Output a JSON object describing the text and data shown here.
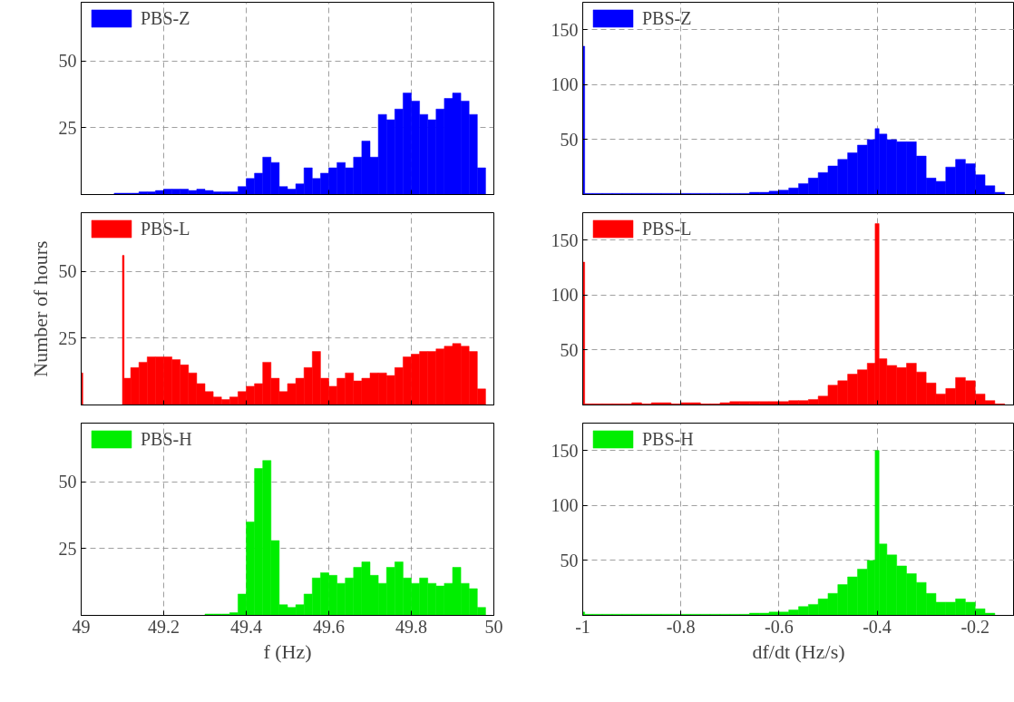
{
  "chart_data": [
    {
      "type": "histogram",
      "bins": [
        49.0,
        49.02,
        49.04,
        49.06,
        49.08,
        49.1,
        49.12,
        49.14,
        49.16,
        49.18,
        49.2,
        49.22,
        49.24,
        49.26,
        49.28,
        49.3,
        49.32,
        49.34,
        49.36,
        49.38,
        49.4,
        49.42,
        49.44,
        49.46,
        49.48,
        49.5,
        49.52,
        49.54,
        49.56,
        49.58,
        49.6,
        49.62,
        49.64,
        49.66,
        49.68,
        49.7,
        49.72,
        49.74,
        49.76,
        49.78,
        49.8,
        49.82,
        49.84,
        49.86,
        49.88,
        49.9,
        49.92,
        49.94,
        49.96,
        49.98,
        50.0
      ],
      "series": [
        {
          "name": "PBS-Z",
          "color": "#0000ff",
          "values": [
            0,
            0,
            0,
            0,
            0.5,
            0.5,
            0.5,
            1,
            1,
            1.5,
            2,
            2,
            2,
            1.5,
            2,
            1.5,
            1,
            1,
            1,
            3,
            6,
            8,
            14,
            12,
            3,
            2,
            4,
            10,
            6,
            8,
            10,
            12,
            10,
            14,
            20,
            14,
            30,
            28,
            32,
            38,
            35,
            30,
            28,
            32,
            36,
            38,
            35,
            30,
            10,
            0
          ]
        }
      ],
      "xlim": [
        49,
        50
      ],
      "xticks": [
        49,
        49.2,
        49.4,
        49.6,
        49.8,
        50
      ],
      "ylim": [
        0,
        72
      ],
      "yticks": [
        25,
        50
      ],
      "tick_labels": "y",
      "grid": true,
      "legend": "top left"
    },
    {
      "type": "histogram",
      "bins": [
        -1,
        -0.996,
        -0.98,
        -0.96,
        -0.94,
        -0.92,
        -0.9,
        -0.88,
        -0.86,
        -0.84,
        -0.82,
        -0.8,
        -0.78,
        -0.76,
        -0.74,
        -0.72,
        -0.7,
        -0.68,
        -0.66,
        -0.64,
        -0.62,
        -0.6,
        -0.58,
        -0.56,
        -0.54,
        -0.52,
        -0.5,
        -0.48,
        -0.46,
        -0.44,
        -0.42,
        -0.404,
        -0.396,
        -0.38,
        -0.36,
        -0.34,
        -0.32,
        -0.3,
        -0.28,
        -0.26,
        -0.24,
        -0.22,
        -0.2,
        -0.18,
        -0.16,
        -0.14
      ],
      "series": [
        {
          "name": "PBS-Z",
          "color": "#0000ff",
          "values": [
            135,
            1,
            1,
            1,
            1,
            1,
            1,
            1,
            1,
            1,
            1,
            1,
            1,
            1,
            1,
            1,
            1,
            1,
            2,
            2,
            3,
            4,
            6,
            10,
            15,
            20,
            26,
            32,
            38,
            45,
            50,
            60,
            55,
            50,
            48,
            48,
            35,
            15,
            12,
            25,
            32,
            28,
            18,
            8,
            2
          ]
        }
      ],
      "xlim": [
        -1,
        -0.12
      ],
      "xticks": [
        -1,
        -0.8,
        -0.6,
        -0.4,
        -0.2
      ],
      "ylim": [
        0,
        175
      ],
      "yticks": [
        50,
        100,
        150
      ],
      "tick_labels": "y",
      "grid": true,
      "legend": "top left"
    },
    {
      "type": "histogram",
      "bins": [
        49.0,
        49.004,
        49.02,
        49.04,
        49.06,
        49.08,
        49.1,
        49.104,
        49.12,
        49.14,
        49.16,
        49.18,
        49.2,
        49.22,
        49.24,
        49.26,
        49.28,
        49.3,
        49.32,
        49.34,
        49.36,
        49.38,
        49.4,
        49.42,
        49.44,
        49.46,
        49.48,
        49.5,
        49.52,
        49.54,
        49.56,
        49.58,
        49.6,
        49.62,
        49.64,
        49.66,
        49.68,
        49.7,
        49.72,
        49.74,
        49.76,
        49.78,
        49.8,
        49.82,
        49.84,
        49.86,
        49.88,
        49.9,
        49.92,
        49.94,
        49.96,
        49.98,
        50.0
      ],
      "series": [
        {
          "name": "PBS-L",
          "color": "#ff0000",
          "values": [
            12,
            0,
            0,
            0,
            0,
            0,
            56,
            10,
            14,
            16,
            18,
            18,
            18,
            17,
            15,
            12,
            8,
            5,
            3,
            2,
            3,
            5,
            7,
            8,
            16,
            10,
            5,
            8,
            10,
            14,
            20,
            10,
            7,
            10,
            12,
            9,
            10,
            12,
            12,
            11,
            14,
            18,
            19,
            20,
            20,
            21,
            22,
            23,
            22,
            20,
            6,
            0
          ]
        }
      ],
      "ylabel": "Number of hours",
      "xlim": [
        49,
        50
      ],
      "xticks": [
        49,
        49.2,
        49.4,
        49.6,
        49.8,
        50
      ],
      "ylim": [
        0,
        72
      ],
      "yticks": [
        25,
        50
      ],
      "tick_labels": "y",
      "grid": true,
      "legend": "top left"
    },
    {
      "type": "histogram",
      "bins": [
        -1,
        -0.996,
        -0.98,
        -0.96,
        -0.94,
        -0.92,
        -0.9,
        -0.88,
        -0.86,
        -0.84,
        -0.82,
        -0.8,
        -0.78,
        -0.76,
        -0.74,
        -0.72,
        -0.7,
        -0.68,
        -0.66,
        -0.64,
        -0.62,
        -0.6,
        -0.58,
        -0.56,
        -0.54,
        -0.52,
        -0.5,
        -0.48,
        -0.46,
        -0.44,
        -0.42,
        -0.404,
        -0.396,
        -0.38,
        -0.36,
        -0.34,
        -0.32,
        -0.3,
        -0.28,
        -0.26,
        -0.24,
        -0.22,
        -0.2,
        -0.18,
        -0.16,
        -0.14
      ],
      "series": [
        {
          "name": "PBS-L",
          "color": "#ff0000",
          "values": [
            130,
            1,
            1,
            1,
            1,
            1,
            2,
            1,
            2,
            2,
            1,
            2,
            2,
            1,
            1,
            2,
            3,
            3,
            3,
            3,
            3,
            3,
            4,
            4,
            5,
            8,
            18,
            22,
            28,
            32,
            38,
            165,
            42,
            36,
            34,
            38,
            30,
            20,
            10,
            15,
            25,
            22,
            10,
            4,
            1
          ]
        }
      ],
      "xlim": [
        -1,
        -0.12
      ],
      "xticks": [
        -1,
        -0.8,
        -0.6,
        -0.4,
        -0.2
      ],
      "ylim": [
        0,
        175
      ],
      "yticks": [
        50,
        100,
        150
      ],
      "tick_labels": "y",
      "grid": true,
      "legend": "top left"
    },
    {
      "type": "histogram",
      "bins": [
        49.0,
        49.02,
        49.04,
        49.06,
        49.08,
        49.1,
        49.12,
        49.14,
        49.16,
        49.18,
        49.2,
        49.22,
        49.24,
        49.26,
        49.28,
        49.3,
        49.32,
        49.34,
        49.36,
        49.38,
        49.4,
        49.42,
        49.44,
        49.46,
        49.48,
        49.5,
        49.52,
        49.54,
        49.56,
        49.58,
        49.6,
        49.62,
        49.64,
        49.66,
        49.68,
        49.7,
        49.72,
        49.74,
        49.76,
        49.78,
        49.8,
        49.82,
        49.84,
        49.86,
        49.88,
        49.9,
        49.92,
        49.94,
        49.96,
        49.98,
        50.0
      ],
      "series": [
        {
          "name": "PBS-H",
          "color": "#00ee00",
          "values": [
            0,
            0,
            0,
            0,
            0,
            0,
            0,
            0,
            0,
            0,
            0,
            0,
            0,
            0,
            0,
            0.5,
            0.5,
            0.5,
            1,
            8,
            35,
            55,
            58,
            28,
            4,
            3,
            4,
            8,
            14,
            16,
            15,
            12,
            14,
            18,
            20,
            15,
            12,
            18,
            20,
            14,
            12,
            14,
            12,
            11,
            12,
            18,
            12,
            10,
            3,
            0
          ]
        }
      ],
      "xlabel": "f (Hz)",
      "xlim": [
        49,
        50
      ],
      "xticks": [
        49,
        49.2,
        49.4,
        49.6,
        49.8,
        50
      ],
      "ylim": [
        0,
        72
      ],
      "yticks": [
        25,
        50
      ],
      "grid": true,
      "legend": "top left"
    },
    {
      "type": "histogram",
      "bins": [
        -1,
        -0.996,
        -0.98,
        -0.96,
        -0.94,
        -0.92,
        -0.9,
        -0.88,
        -0.86,
        -0.84,
        -0.82,
        -0.8,
        -0.78,
        -0.76,
        -0.74,
        -0.72,
        -0.7,
        -0.68,
        -0.66,
        -0.64,
        -0.62,
        -0.6,
        -0.58,
        -0.56,
        -0.54,
        -0.52,
        -0.5,
        -0.48,
        -0.46,
        -0.44,
        -0.42,
        -0.404,
        -0.396,
        -0.38,
        -0.36,
        -0.34,
        -0.32,
        -0.3,
        -0.28,
        -0.26,
        -0.24,
        -0.22,
        -0.2,
        -0.18,
        -0.16,
        -0.14
      ],
      "series": [
        {
          "name": "PBS-H",
          "color": "#00ee00",
          "values": [
            3,
            1,
            1,
            1,
            1,
            1,
            1,
            1,
            1,
            1,
            1,
            1,
            1,
            1,
            1,
            1,
            1,
            1,
            2,
            2,
            3,
            3,
            5,
            8,
            10,
            15,
            20,
            28,
            35,
            42,
            50,
            150,
            65,
            55,
            45,
            38,
            30,
            20,
            12,
            12,
            15,
            12,
            6,
            2,
            0
          ]
        }
      ],
      "xlabel": "df/dt (Hz/s)",
      "xlim": [
        -1,
        -0.12
      ],
      "xticks": [
        -1,
        -0.8,
        -0.6,
        -0.4,
        -0.2
      ],
      "ylim": [
        0,
        175
      ],
      "yticks": [
        50,
        100,
        150
      ],
      "grid": true,
      "legend": "top left"
    }
  ]
}
